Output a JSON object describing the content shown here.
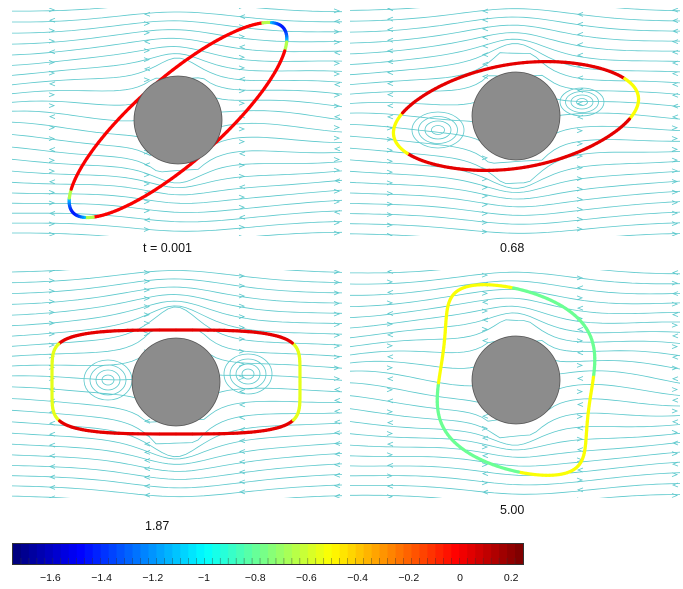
{
  "panels": [
    {
      "id": "p1",
      "caption": "t = 0.001"
    },
    {
      "id": "p2",
      "caption": "0.68"
    },
    {
      "id": "p3",
      "caption": "1.87"
    },
    {
      "id": "p4",
      "caption": "5.00"
    }
  ],
  "colorbar": {
    "ticks": [
      "−1.6",
      "−1.4",
      "−1.2",
      "−1",
      "−0.8",
      "−0.6",
      "−0.4",
      "−0.2",
      "0",
      "0.2"
    ],
    "tick_values": [
      -1.6,
      -1.4,
      -1.2,
      -1.0,
      -0.8,
      -0.6,
      -0.4,
      -0.2,
      0,
      0.2
    ],
    "range": [
      -1.75,
      0.25
    ],
    "colormap": "jet"
  },
  "colors": {
    "streamline": "#5bc8cc",
    "cylinder": "#8c8c8c",
    "cylinder_edge": "#555555"
  }
}
